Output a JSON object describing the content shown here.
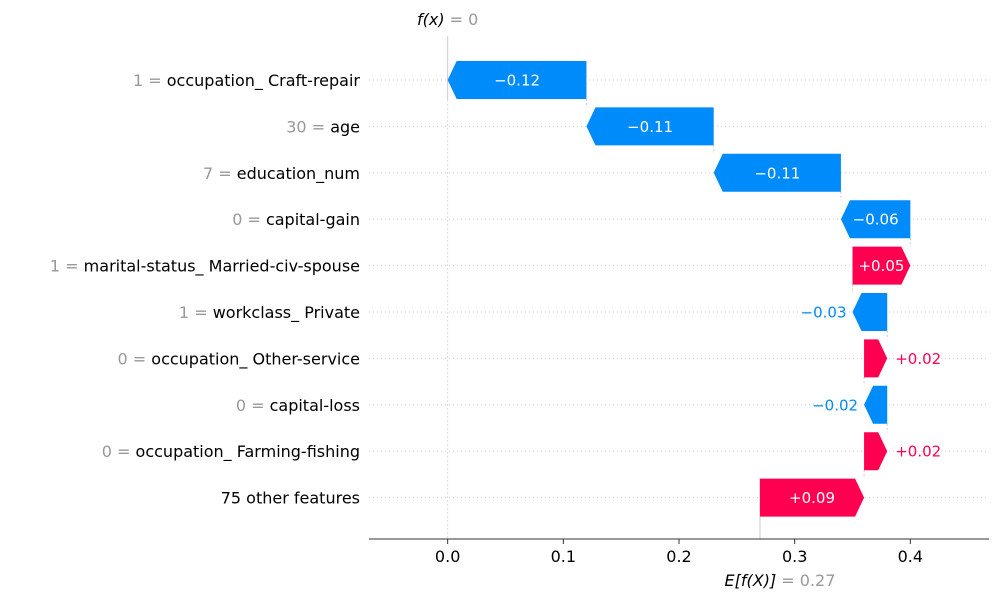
{
  "chart_data": {
    "type": "waterfall",
    "top_label": {
      "expr": "f(x)",
      "eq": " = 0"
    },
    "bottom_label": {
      "expr": "E[f(X)]",
      "eq": " = 0.27"
    },
    "base_value": 0.27,
    "output_value": 0,
    "xlim": [
      -0.068,
      0.468
    ],
    "xticks": [
      0.0,
      0.1,
      0.2,
      0.3,
      0.4
    ],
    "xtick_labels": [
      "0.0",
      "0.1",
      "0.2",
      "0.3",
      "0.4"
    ],
    "features": [
      {
        "value": "1",
        "name": "occupation_ Craft-repair",
        "contribution": -0.12,
        "label": "−0.12"
      },
      {
        "value": "30",
        "name": "age",
        "contribution": -0.11,
        "label": "−0.11"
      },
      {
        "value": "7",
        "name": "education_num",
        "contribution": -0.11,
        "label": "−0.11"
      },
      {
        "value": "0",
        "name": "capital-gain",
        "contribution": -0.06,
        "label": "−0.06"
      },
      {
        "value": "1",
        "name": "marital-status_ Married-civ-spouse",
        "contribution": 0.05,
        "label": "+0.05"
      },
      {
        "value": "1",
        "name": "workclass_ Private",
        "contribution": -0.03,
        "label": "−0.03"
      },
      {
        "value": "0",
        "name": "occupation_ Other-service",
        "contribution": 0.02,
        "label": "+0.02"
      },
      {
        "value": "0",
        "name": "capital-loss",
        "contribution": -0.02,
        "label": "−0.02"
      },
      {
        "value": "0",
        "name": "occupation_ Farming-fishing",
        "contribution": 0.02,
        "label": "+0.02"
      },
      {
        "value": "",
        "name": "75 other features",
        "contribution": 0.09,
        "label": "+0.09"
      }
    ],
    "colors": {
      "positive": "#ff0051",
      "negative": "#008bfb",
      "inside_label": "#ffffff",
      "muted": "#999999",
      "axis": "#333333"
    }
  }
}
